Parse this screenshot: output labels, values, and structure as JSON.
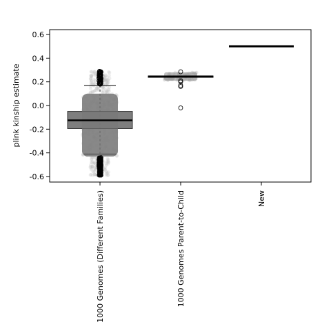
{
  "chart_data": {
    "type": "box",
    "title": "",
    "xlabel": "",
    "ylabel": "plink kinship estimate",
    "ylim": [
      -0.65,
      0.65
    ],
    "yticks": [
      "-0.6",
      "-0.4",
      "-0.2",
      "0.0",
      "0.2",
      "0.4",
      "0.6"
    ],
    "ytick_values": [
      -0.6,
      -0.4,
      -0.2,
      0.0,
      0.2,
      0.4,
      0.6
    ],
    "categories": [
      "1000 Genomes (Different Families)",
      "1000 Genomes Parent-to-Child",
      "New"
    ],
    "grid": false,
    "boxes": [
      {
        "category": "1000 Genomes (Different Families)",
        "q1": -0.195,
        "median": -0.125,
        "q3": -0.05,
        "whisker_low": -0.41,
        "whisker_high": 0.17,
        "outliers_high_range": [
          0.18,
          0.29
        ],
        "outliers_low_range": [
          -0.41,
          -0.59
        ],
        "violin_range": [
          -0.43,
          0.1
        ]
      },
      {
        "category": "1000 Genomes Parent-to-Child",
        "q1": 0.24,
        "median": 0.245,
        "q3": 0.25,
        "whisker_low": 0.21,
        "whisker_high": 0.28,
        "outliers": [
          0.285,
          0.21,
          0.2,
          0.17,
          0.16,
          -0.02
        ]
      },
      {
        "category": "New",
        "q1": 0.495,
        "median": 0.5,
        "q3": 0.5,
        "whisker_low": 0.495,
        "whisker_high": 0.5,
        "outliers": []
      }
    ],
    "colors": {
      "box_fill": "#707070",
      "violin": "#808080",
      "jitter": "#bdbdbd",
      "median": "#000000"
    }
  }
}
